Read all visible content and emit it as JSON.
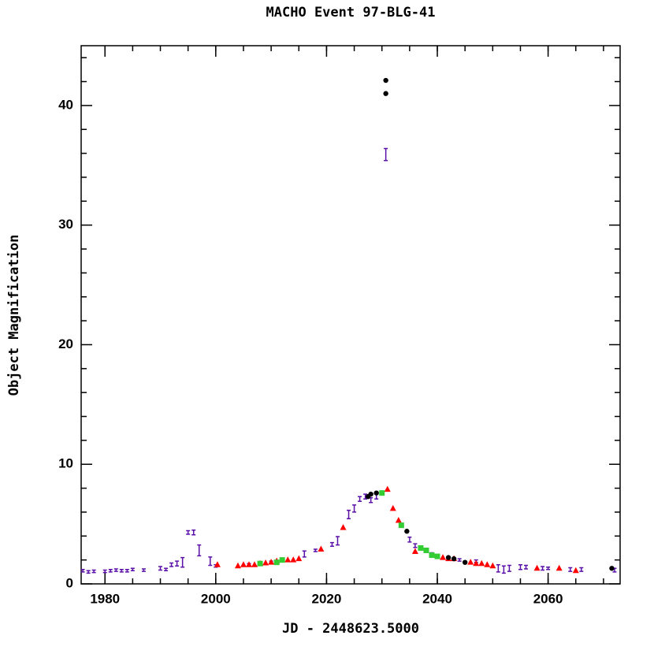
{
  "chart_data": {
    "type": "scatter",
    "title": "MACHO Event 97-BLG-41",
    "xlabel": "JD - 2448623.5000",
    "ylabel": "Object Magnification",
    "xlim": [
      1975.7,
      2073
    ],
    "ylim": [
      0,
      45
    ],
    "xticks": [
      1980,
      2000,
      2020,
      2040,
      2060
    ],
    "yticks": [
      0,
      10,
      20,
      30,
      40
    ],
    "xminorticks": [
      1980,
      1985,
      1990,
      1995,
      2000,
      2005,
      2010,
      2015,
      2020,
      2025,
      2030,
      2035,
      2040,
      2045,
      2050,
      2055,
      2060,
      2065,
      2070
    ],
    "yminorticks": [
      2,
      4,
      6,
      8,
      12,
      14,
      16,
      18,
      22,
      24,
      26,
      28,
      32,
      34,
      36,
      38,
      42,
      44
    ],
    "series": [
      {
        "marker": "errorbar",
        "color": "#5a10a8",
        "x": [
          1976,
          1977,
          1978,
          1980,
          1981,
          1982,
          1983,
          1984,
          1985,
          1987,
          1990,
          1991,
          1992,
          1993,
          1994,
          1995,
          1996,
          1997,
          1999,
          2000,
          2006,
          2010,
          2016,
          2018,
          2021,
          2022,
          2024,
          2025,
          2026,
          2027,
          2028,
          2029,
          2030.7,
          2035,
          2036,
          2039,
          2044,
          2047,
          2051,
          2052,
          2053,
          2055,
          2056,
          2059,
          2060,
          2064,
          2066,
          2072
        ],
        "values": [
          1.1,
          1.0,
          1.05,
          1.05,
          1.1,
          1.15,
          1.1,
          1.1,
          1.2,
          1.15,
          1.3,
          1.2,
          1.6,
          1.7,
          1.8,
          4.3,
          4.3,
          2.8,
          1.9,
          1.5,
          1.6,
          1.8,
          2.5,
          2.8,
          3.3,
          3.6,
          5.8,
          6.3,
          7.1,
          7.3,
          7.0,
          7.3,
          35.9,
          3.7,
          3.2,
          2.5,
          2.0,
          1.9,
          1.3,
          1.2,
          1.3,
          1.4,
          1.4,
          1.3,
          1.3,
          1.2,
          1.2,
          1.15
        ],
        "errors": [
          0.1,
          0.1,
          0.1,
          0.1,
          0.1,
          0.1,
          0.1,
          0.1,
          0.1,
          0.1,
          0.15,
          0.1,
          0.15,
          0.2,
          0.4,
          0.15,
          0.2,
          0.45,
          0.35,
          0.1,
          0.1,
          0.1,
          0.25,
          0.1,
          0.15,
          0.35,
          0.35,
          0.3,
          0.2,
          0.2,
          0.2,
          0.2,
          0.5,
          0.2,
          0.15,
          0.1,
          0.1,
          0.1,
          0.3,
          0.3,
          0.25,
          0.2,
          0.15,
          0.15,
          0.1,
          0.15,
          0.15,
          0.15
        ]
      },
      {
        "marker": "triangle",
        "color": "#ff0000",
        "x": [
          2000.3,
          2004,
          2005,
          2006,
          2007,
          2008,
          2009,
          2010,
          2011,
          2013,
          2014,
          2015,
          2019,
          2023,
          2031,
          2032,
          2033,
          2036,
          2041,
          2042,
          2043,
          2046,
          2047,
          2048,
          2049,
          2050,
          2058,
          2062,
          2065
        ],
        "values": [
          1.6,
          1.5,
          1.6,
          1.6,
          1.6,
          1.7,
          1.75,
          1.8,
          1.9,
          2.0,
          2.0,
          2.1,
          2.9,
          4.7,
          7.9,
          6.3,
          5.3,
          2.7,
          2.2,
          2.1,
          2.1,
          1.8,
          1.7,
          1.7,
          1.6,
          1.5,
          1.3,
          1.3,
          1.1
        ]
      },
      {
        "marker": "square",
        "color": "#33cc33",
        "x": [
          2008,
          2011,
          2012,
          2030,
          2033.5,
          2037,
          2038,
          2039,
          2040
        ],
        "values": [
          1.7,
          1.8,
          2.0,
          7.6,
          4.9,
          3.0,
          2.8,
          2.4,
          2.3
        ]
      },
      {
        "marker": "circle",
        "color": "#000000",
        "x": [
          2030.7,
          2030.7,
          2027.5,
          2028,
          2029,
          2034.5,
          2042,
          2043,
          2045,
          2071.5
        ],
        "values": [
          42.1,
          41.0,
          7.3,
          7.5,
          7.6,
          4.4,
          2.2,
          2.1,
          1.8,
          1.3
        ]
      }
    ]
  }
}
